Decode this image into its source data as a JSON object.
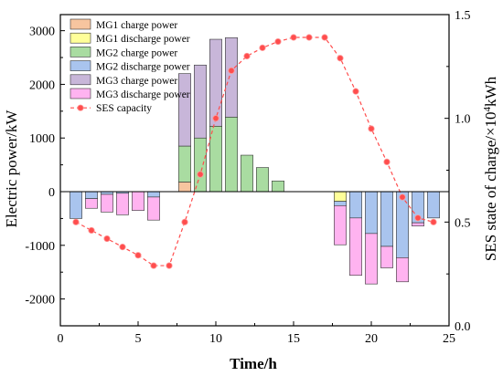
{
  "chart_data": {
    "type": "bar",
    "stacking": "stacked positive and negative, with secondary line axis",
    "x": [
      1,
      2,
      3,
      4,
      5,
      6,
      7,
      8,
      9,
      10,
      11,
      12,
      13,
      14,
      15,
      16,
      17,
      18,
      19,
      20,
      21,
      22,
      23,
      24
    ],
    "xlabel": "Time/h",
    "xlim": [
      0,
      25
    ],
    "xticks": [
      0,
      5,
      10,
      15,
      20,
      25
    ],
    "ylabel": "Electric power/kW",
    "ylim": [
      -2500,
      3300
    ],
    "yticks": [
      -2000,
      -1000,
      0,
      1000,
      2000,
      3000
    ],
    "y2label_prefix": "SES state of charge/×10",
    "y2label_sup": "4",
    "y2label_suffix": "kWh",
    "y2lim": [
      0,
      1.5
    ],
    "y2ticks": [
      0.0,
      0.5,
      1.0,
      1.5
    ],
    "y2ticklabels": [
      "0.0",
      "0.5",
      "1.0",
      "1.5"
    ],
    "grid": false,
    "legend_position": "top-left",
    "series": [
      {
        "name": "MG1 charge power",
        "color": "#f7c59f",
        "values": [
          0,
          0,
          0,
          0,
          0,
          0,
          0,
          180,
          0,
          0,
          0,
          0,
          0,
          0,
          0,
          0,
          0,
          0,
          0,
          0,
          0,
          0,
          0,
          0
        ]
      },
      {
        "name": "MG1 discharge power",
        "color": "#ffff99",
        "values": [
          0,
          0,
          0,
          0,
          0,
          0,
          0,
          0,
          0,
          0,
          0,
          0,
          0,
          0,
          0,
          0,
          0,
          -180,
          0,
          0,
          0,
          0,
          0,
          0
        ]
      },
      {
        "name": "MG2 charge power",
        "color": "#a9dca1",
        "values": [
          0,
          0,
          0,
          0,
          0,
          0,
          0,
          670,
          1000,
          1220,
          1390,
          680,
          450,
          200,
          0,
          0,
          0,
          0,
          0,
          0,
          0,
          0,
          0,
          0
        ]
      },
      {
        "name": "MG2 discharge power",
        "color": "#a9c4ee",
        "values": [
          -500,
          -130,
          -50,
          -30,
          0,
          -100,
          0,
          0,
          0,
          0,
          0,
          0,
          0,
          0,
          0,
          0,
          0,
          -80,
          -490,
          -780,
          -1020,
          -1230,
          -580,
          -490
        ]
      },
      {
        "name": "MG3 charge power",
        "color": "#c8b6d9",
        "values": [
          0,
          0,
          0,
          0,
          0,
          0,
          0,
          1350,
          1360,
          1620,
          1480,
          0,
          0,
          0,
          0,
          0,
          0,
          0,
          0,
          0,
          0,
          0,
          0,
          0
        ]
      },
      {
        "name": "MG3 discharge power",
        "color": "#ffb3f0",
        "values": [
          0,
          -180,
          -330,
          -400,
          -350,
          -430,
          0,
          0,
          0,
          0,
          0,
          0,
          0,
          0,
          0,
          0,
          0,
          -730,
          -1070,
          -940,
          -400,
          -450,
          -60,
          0
        ]
      }
    ],
    "line": {
      "name": "SES capacity",
      "color": "#ff4d4d",
      "axis": "right",
      "x": [
        1,
        2,
        3,
        4,
        5,
        6,
        7,
        8,
        9,
        10,
        11,
        12,
        13,
        14,
        15,
        16,
        17,
        18,
        19,
        20,
        21,
        22,
        23,
        24
      ],
      "values": [
        0.5,
        0.46,
        0.42,
        0.38,
        0.34,
        0.29,
        0.29,
        0.5,
        0.73,
        1.0,
        1.23,
        1.3,
        1.34,
        1.37,
        1.39,
        1.39,
        1.39,
        1.29,
        1.13,
        0.95,
        0.79,
        0.62,
        0.52,
        0.5
      ]
    }
  }
}
